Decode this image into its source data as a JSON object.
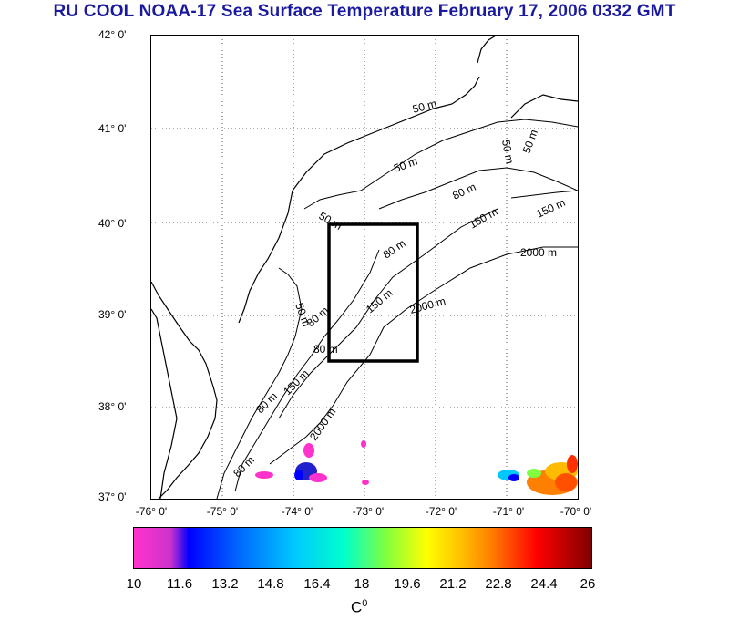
{
  "title": "RU COOL  NOAA-17 Sea Surface Temperature February 17, 2006 0332 GMT",
  "map": {
    "lat_labels": [
      "42° 0'",
      "41° 0'",
      "40° 0'",
      "39° 0'",
      "38° 0'",
      "37° 0'"
    ],
    "lon_labels": [
      "-76° 0'",
      "-75° 0'",
      "-74° 0'",
      "-73° 0'",
      "-72° 0'",
      "-71° 0'",
      "-70° 0'"
    ],
    "contour_labels": {
      "m50_a": "50 m",
      "m50_b": "50 m",
      "m50_c": "50 m",
      "m50_d": "50 m",
      "m50_e": "50 m",
      "m50_f": "50 m",
      "m80_a": "80 m",
      "m80_b": "80 m",
      "m80_c": "80 m",
      "m80_d": "80 m",
      "m80_e": "80 m",
      "m80_f": "80 m",
      "m150_a": "150 m",
      "m150_b": "150 m",
      "m150_c": "150 m",
      "m150_d": "150 m",
      "m2000_a": "2000 m",
      "m2000_b": "2000 m",
      "m2000_c": "2000 m"
    },
    "box_color": "#000000"
  },
  "colorbar": {
    "ticks": [
      "10",
      "11.6",
      "13.2",
      "14.8",
      "16.4",
      "18",
      "19.6",
      "21.2",
      "22.8",
      "24.4",
      "26"
    ],
    "unit": "C",
    "unit_sup": "0",
    "colors": [
      "#ff33cc",
      "#0000ff",
      "#00c8ff",
      "#00ffcc",
      "#80ff40",
      "#ffff00",
      "#ff8000",
      "#ff0000",
      "#800000"
    ]
  }
}
